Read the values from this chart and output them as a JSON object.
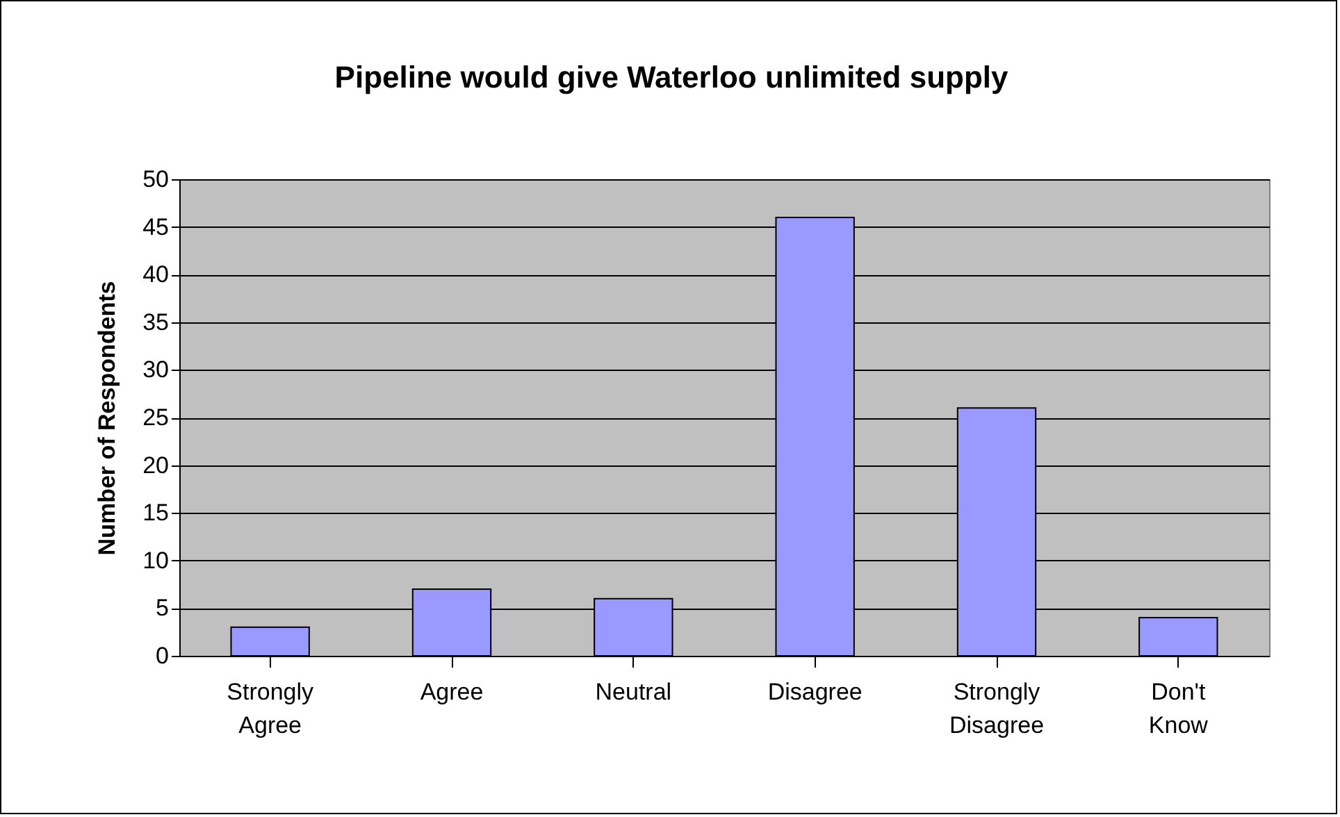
{
  "chart_data": {
    "type": "bar",
    "title": "Pipeline would give Waterloo unlimited supply",
    "ylabel": "Number of Respondents",
    "categories": [
      "Strongly Agree",
      "Agree",
      "Neutral",
      "Disagree",
      "Strongly Disagree",
      "Don't Know"
    ],
    "values": [
      3,
      7,
      6,
      46,
      26,
      4
    ],
    "color": "#9999ff",
    "ylim": [
      0,
      50
    ],
    "yticks": [
      0,
      5,
      10,
      15,
      20,
      25,
      30,
      35,
      40,
      45,
      50
    ],
    "grid": "y"
  }
}
